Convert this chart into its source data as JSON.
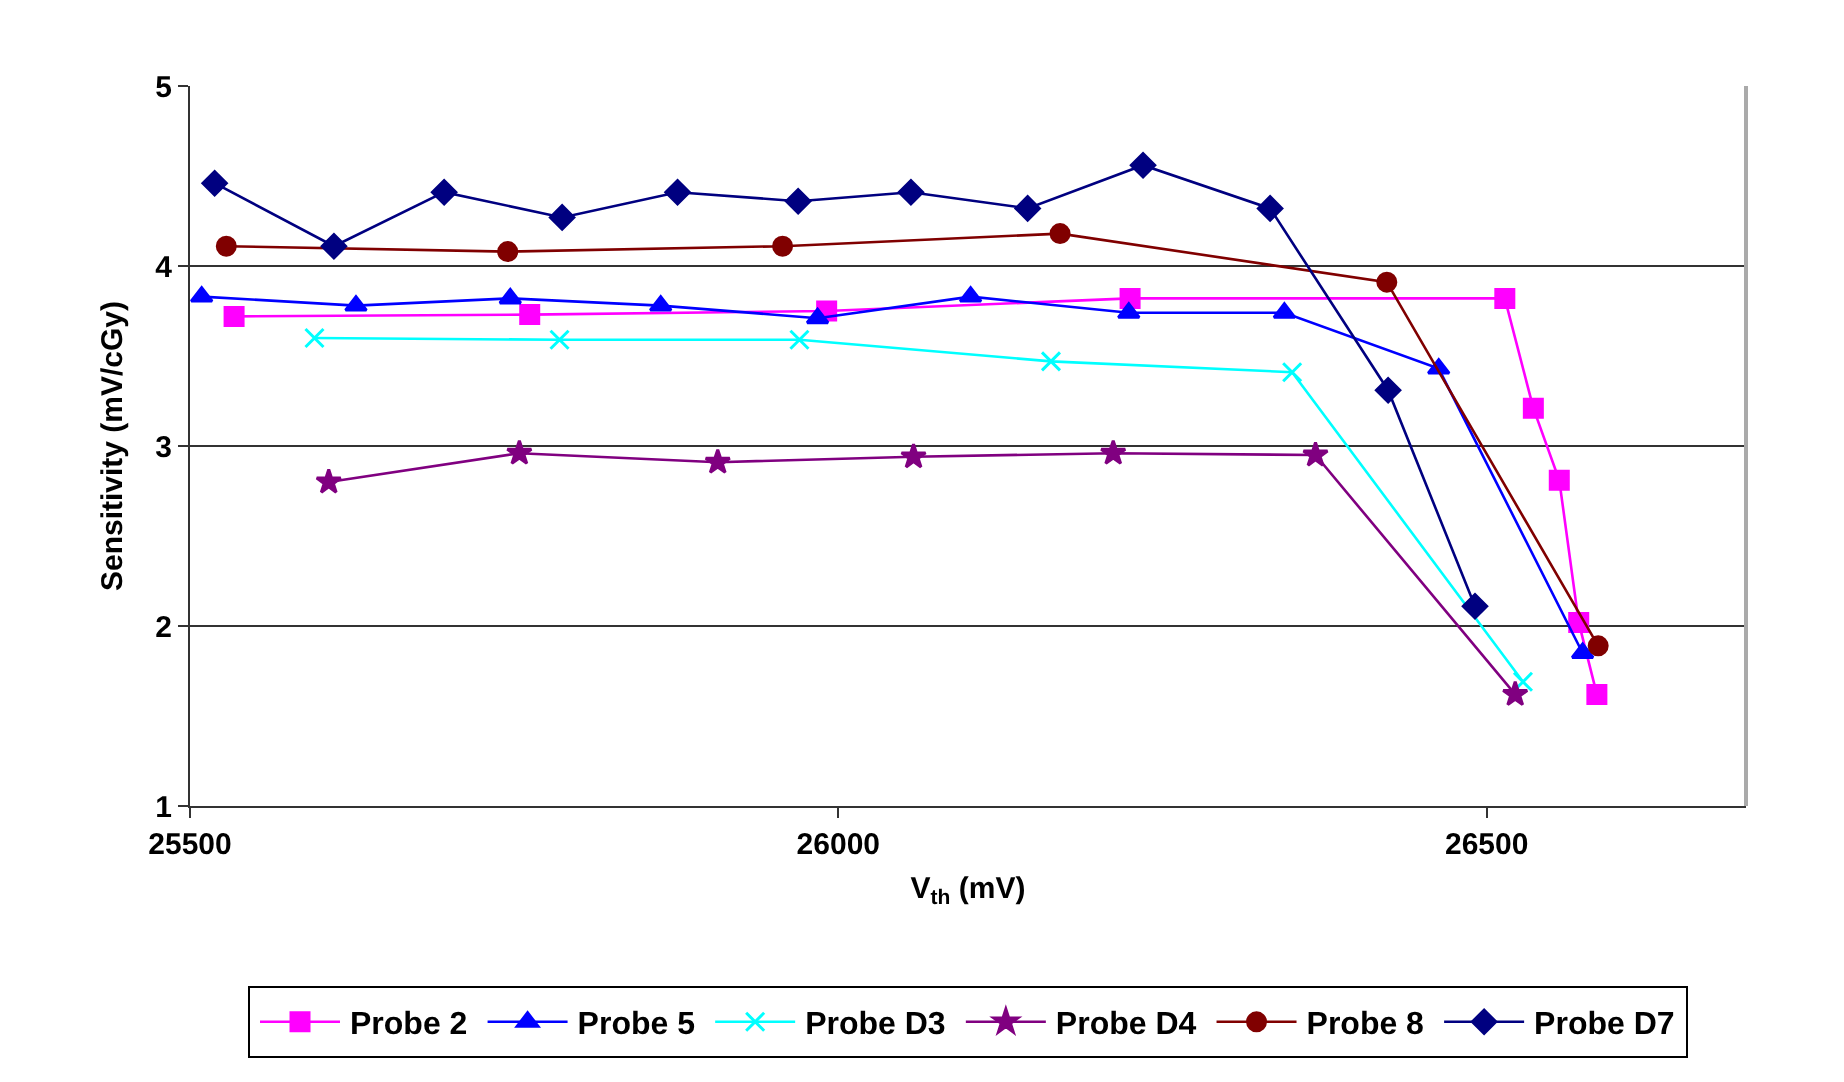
{
  "chart_data": {
    "type": "line",
    "xlabel": "V$_{th}$ (mV)",
    "ylabel": "Sensitivity (mV/cGy)",
    "xlim": [
      25500,
      26700
    ],
    "xticks": [
      25500,
      26000,
      26500
    ],
    "ylim": [
      1,
      5
    ],
    "yticks": [
      1,
      2,
      3,
      4,
      5
    ],
    "grid": "y",
    "legend": "bottom",
    "series": [
      {
        "name": "Probe 2",
        "color": "#ff00ff",
        "marker": "square",
        "x": [
          25534,
          25762,
          25991,
          26225,
          26514,
          26536,
          26556,
          26571,
          26585
        ],
        "values": [
          3.72,
          3.73,
          3.75,
          3.82,
          3.82,
          3.21,
          2.81,
          2.02,
          1.62
        ]
      },
      {
        "name": "Probe 5",
        "color": "#0000ff",
        "marker": "triangle",
        "x": [
          25509,
          25628,
          25747,
          25863,
          25984,
          26102,
          26224,
          26344,
          26463,
          26574
        ],
        "values": [
          3.83,
          3.78,
          3.82,
          3.78,
          3.71,
          3.83,
          3.74,
          3.74,
          3.43,
          1.85
        ]
      },
      {
        "name": "Probe D3",
        "color": "#00ffff",
        "marker": "cross",
        "x": [
          25596,
          25785,
          25970,
          26164,
          26350,
          26528
        ],
        "values": [
          3.6,
          3.59,
          3.59,
          3.47,
          3.41,
          1.69
        ]
      },
      {
        "name": "Probe D4",
        "color": "#800080",
        "marker": "star",
        "x": [
          25607,
          25754,
          25907,
          26058,
          26212,
          26368,
          26522
        ],
        "values": [
          2.8,
          2.96,
          2.91,
          2.94,
          2.96,
          2.95,
          1.62
        ]
      },
      {
        "name": "Probe 8",
        "color": "#800000",
        "marker": "circle",
        "x": [
          25528,
          25745,
          25957,
          26171,
          26423,
          26586
        ],
        "values": [
          4.11,
          4.08,
          4.11,
          4.18,
          3.91,
          1.89
        ]
      },
      {
        "name": "Probe D7",
        "color": "#000080",
        "marker": "diamond",
        "x": [
          25519,
          25611,
          25696,
          25787,
          25876,
          25969,
          26056,
          26146,
          26235,
          26333,
          26424,
          26491
        ],
        "values": [
          4.46,
          4.11,
          4.41,
          4.27,
          4.41,
          4.36,
          4.41,
          4.32,
          4.56,
          4.32,
          3.31,
          2.11
        ]
      }
    ]
  }
}
